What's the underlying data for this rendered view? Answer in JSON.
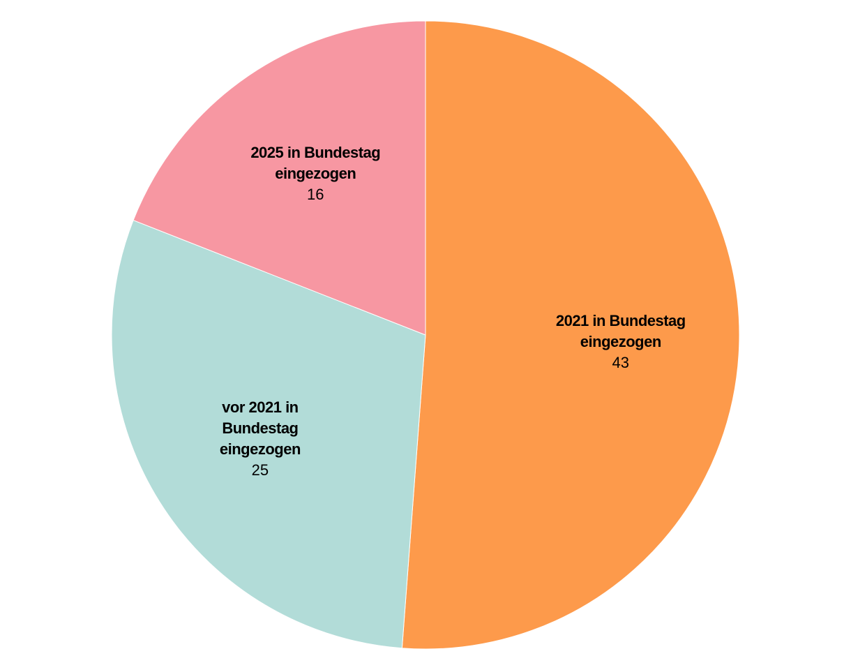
{
  "chart_data": {
    "type": "pie",
    "categories": [
      "2021 in Bundestag eingezogen",
      "vor 2021 in Bundestag eingezogen",
      "2025 in Bundestag eingezogen"
    ],
    "values": [
      43,
      25,
      16
    ],
    "colors": [
      "#fd9a4b",
      "#b2dcd8",
      "#f797a2"
    ]
  }
}
